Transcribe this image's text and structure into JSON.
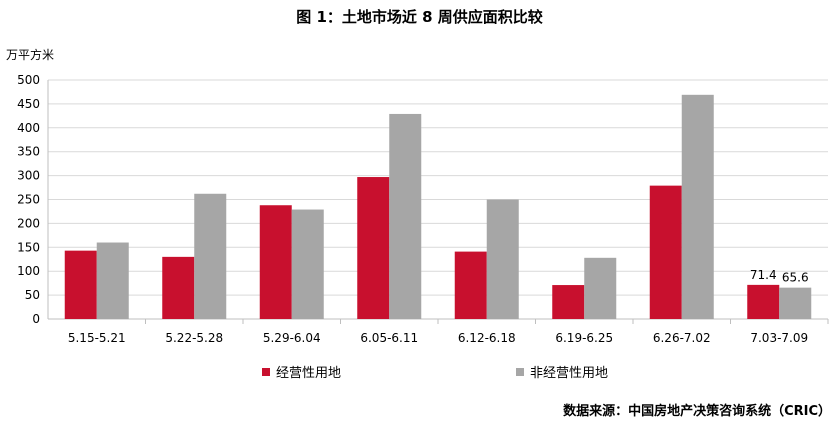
{
  "title": "图 1：土地市场近 8 周供应面积比较",
  "unit": "万平方米",
  "source": "数据来源：中国房地产决策咨询系统（CRIC）",
  "chart_data": {
    "type": "bar",
    "categories": [
      "5.15-5.21",
      "5.22-5.28",
      "5.29-6.04",
      "6.05-6.11",
      "6.12-6.18",
      "6.19-6.25",
      "6.26-7.02",
      "7.03-7.09"
    ],
    "series": [
      {
        "name": "经营性用地",
        "color": "#C8102E",
        "values": [
          143,
          130,
          238,
          297,
          141,
          71,
          279,
          71.4
        ]
      },
      {
        "name": "非经营性用地",
        "color": "#A6A6A6",
        "values": [
          160,
          262,
          229,
          429,
          250,
          128,
          469,
          65.6
        ]
      }
    ],
    "data_labels": [
      {
        "series": 0,
        "index": 7,
        "text": "71.4"
      },
      {
        "series": 1,
        "index": 7,
        "text": "65.6"
      }
    ],
    "ylim": [
      0,
      500
    ],
    "yticks": [
      0,
      50,
      100,
      150,
      200,
      250,
      300,
      350,
      400,
      450,
      500
    ],
    "grid": true,
    "legend": "bottom"
  }
}
